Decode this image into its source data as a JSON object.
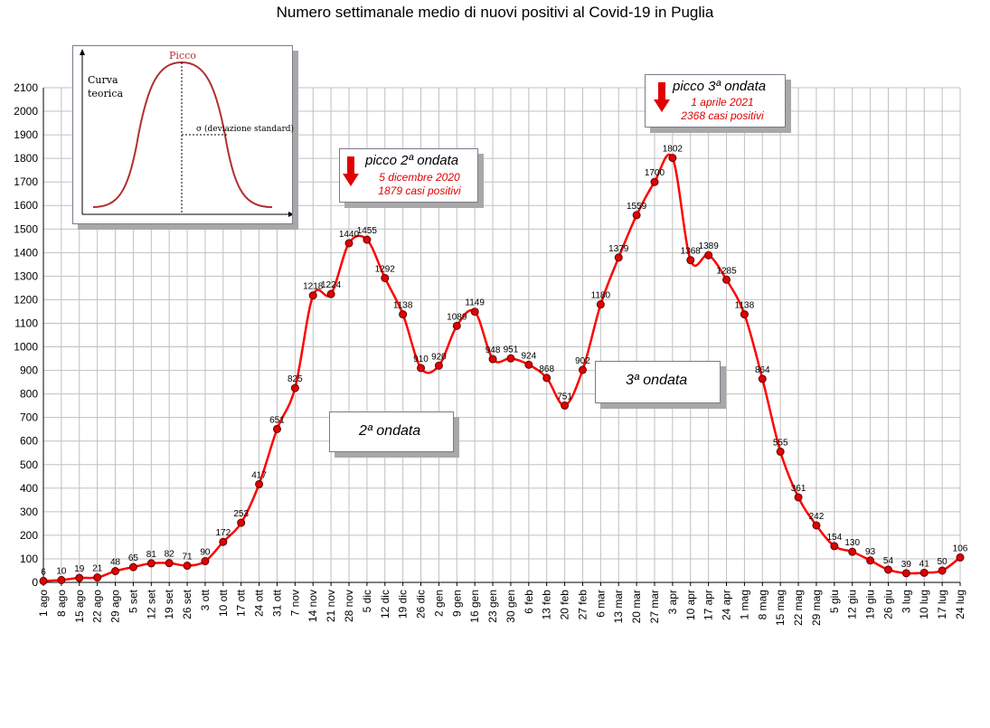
{
  "chart_data": {
    "type": "line",
    "title": "Numero settimanale medio di nuovi positivi al Covid-19 in Puglia",
    "ylim": [
      0,
      2100
    ],
    "ytick_step": 100,
    "grid": true,
    "categories": [
      "1 ago",
      "8 ago",
      "15 ago",
      "22 ago",
      "29 ago",
      "5 set",
      "12 set",
      "19 set",
      "26 set",
      "3 ott",
      "10 ott",
      "17 ott",
      "24 ott",
      "31 ott",
      "7 nov",
      "14 nov",
      "21 nov",
      "28 nov",
      "5 dic",
      "12 dic",
      "19 dic",
      "26 dic",
      "2 gen",
      "9 gen",
      "16 gen",
      "23 gen",
      "30 gen",
      "6 feb",
      "13 feb",
      "20 feb",
      "27 feb",
      "6 mar",
      "13 mar",
      "20 mar",
      "27 mar",
      "3 apr",
      "10 apr",
      "17 apr",
      "24 apr",
      "1 mag",
      "8 mag",
      "15 mag",
      "22 mag",
      "29 mag",
      "5 giu",
      "12 giu",
      "19 giu",
      "26 giu",
      "3 lug",
      "10 lug",
      "17 lug",
      "24 lug"
    ],
    "series": [
      {
        "color": "#ff0000",
        "points": [
          {
            "x": 0,
            "y": 6,
            "label": "6"
          },
          {
            "x": 1,
            "y": 10,
            "label": "10"
          },
          {
            "x": 2,
            "y": 19,
            "label": "19"
          },
          {
            "x": 3,
            "y": 21,
            "label": "21"
          },
          {
            "x": 4,
            "y": 48,
            "label": "48"
          },
          {
            "x": 5,
            "y": 65,
            "label": "65"
          },
          {
            "x": 6,
            "y": 81,
            "label": "81"
          },
          {
            "x": 7,
            "y": 82,
            "label": "82"
          },
          {
            "x": 8,
            "y": 71,
            "label": "71"
          },
          {
            "x": 9,
            "y": 90,
            "label": "90"
          },
          {
            "x": 10,
            "y": 172,
            "label": "172"
          },
          {
            "x": 11,
            "y": 253,
            "label": "253"
          },
          {
            "x": 12,
            "y": 417,
            "label": "417"
          },
          {
            "x": 13,
            "y": 651,
            "label": "651"
          },
          {
            "x": 14,
            "y": 825,
            "label": "825"
          },
          {
            "x": 15,
            "y": 1218,
            "label": "1218"
          },
          {
            "x": 16,
            "y": 1224,
            "label": "1224"
          },
          {
            "x": 17,
            "y": 1440,
            "label": "1440"
          },
          {
            "x": 18,
            "y": 1455,
            "label": "1455"
          },
          {
            "x": 19,
            "y": 1292,
            "label": "1292"
          },
          {
            "x": 20,
            "y": 1138,
            "label": "1138"
          },
          {
            "x": 21,
            "y": 910,
            "label": "910"
          },
          {
            "x": 22,
            "y": 920,
            "label": "920"
          },
          {
            "x": 23,
            "y": 1089,
            "label": "1089"
          },
          {
            "x": 24,
            "y": 1149,
            "label": "1149"
          },
          {
            "x": 25,
            "y": 948,
            "label": "948"
          },
          {
            "x": 26,
            "y": 951,
            "label": "951"
          },
          {
            "x": 27,
            "y": 924,
            "label": "924"
          },
          {
            "x": 28,
            "y": 868,
            "label": "868"
          },
          {
            "x": 29,
            "y": 751,
            "label": "751"
          },
          {
            "x": 30,
            "y": 902,
            "label": "902"
          },
          {
            "x": 31,
            "y": 1180,
            "label": "1180"
          },
          {
            "x": 32,
            "y": 1379,
            "label": "1379"
          },
          {
            "x": 33,
            "y": 1559,
            "label": "1559"
          },
          {
            "x": 34,
            "y": 1700,
            "label": "1700"
          },
          {
            "x": 35,
            "y": 1802,
            "label": "1802"
          },
          {
            "x": 36,
            "y": 1368,
            "label": "1368"
          },
          {
            "x": 37,
            "y": 1389,
            "label": "1389"
          },
          {
            "x": 38,
            "y": 1285,
            "label": "1285"
          },
          {
            "x": 39,
            "y": 1138,
            "label": "1138"
          },
          {
            "x": 40,
            "y": 864,
            "label": "864"
          },
          {
            "x": 41,
            "y": 555,
            "label": "555"
          },
          {
            "x": 42,
            "y": 361,
            "label": "361"
          },
          {
            "x": 43,
            "y": 242,
            "label": "242"
          },
          {
            "x": 44,
            "y": 154,
            "label": "154"
          },
          {
            "x": 45,
            "y": 130,
            "label": "130"
          },
          {
            "x": 46,
            "y": 93,
            "label": "93"
          },
          {
            "x": 47,
            "y": 54,
            "label": "54"
          },
          {
            "x": 48,
            "y": 39,
            "label": "39"
          },
          {
            "x": 49,
            "y": 41,
            "label": "41"
          },
          {
            "x": 50,
            "y": 50,
            "label": "50"
          },
          {
            "x": 51,
            "y": 106,
            "label": "106"
          }
        ]
      }
    ]
  },
  "inset": {
    "curve_label_line1": "Curva",
    "curve_label_line2": "teorica",
    "peak_label": "Picco",
    "sigma_label": "σ  (deviazione standard)"
  },
  "annotations": {
    "peak2": {
      "title": "picco 2ª ondata",
      "date": "5 dicembre 2020",
      "cases": "1879 casi positivi"
    },
    "peak3": {
      "title": "picco 3ª ondata",
      "date": "1 aprile 2021",
      "cases": "2368 casi positivi"
    },
    "wave2": {
      "label": "2ª ondata"
    },
    "wave3": {
      "label": "3ª ondata"
    }
  }
}
